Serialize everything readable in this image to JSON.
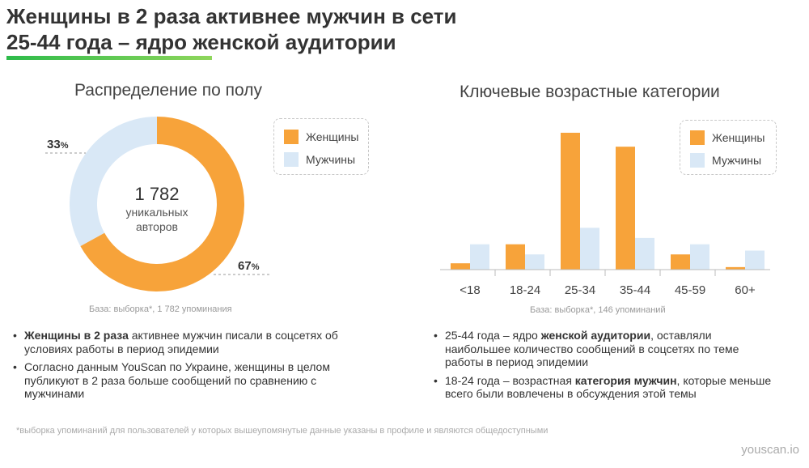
{
  "title": {
    "line1": "Женщины в 2 раза активнее мужчин в сети",
    "line2": "25-44 года – ядро женской аудитории"
  },
  "colors": {
    "women": "#f7a33a",
    "men": "#d9e8f6",
    "accent": "#2dbb4a"
  },
  "legend": {
    "women": "Женщины",
    "men": "Мужчины"
  },
  "donut": {
    "section_title": "Распределение по полу",
    "center_value": "1 782",
    "center_label_1": "уникальных",
    "center_label_2": "авторов",
    "men_label": "33",
    "women_label": "67",
    "pct_sign": "%",
    "base": "База: выборка*, 1 782 упоминания"
  },
  "bars": {
    "section_title": "Ключевые возрастные категории",
    "base": "База: выборка*, 146 упоминаний"
  },
  "chart_data": [
    {
      "type": "pie",
      "categories": [
        "Женщины",
        "Мужчины"
      ],
      "values": [
        67,
        33
      ],
      "unit": "%",
      "title": "Распределение по полу"
    },
    {
      "type": "bar",
      "title": "Ключевые возрастные категории",
      "categories": [
        "<18",
        "18-24",
        "25-34",
        "35-44",
        "45-59",
        "60+"
      ],
      "series": [
        {
          "name": "Женщины",
          "values": [
            5,
            20,
            108,
            97,
            12,
            2
          ]
        },
        {
          "name": "Мужчины",
          "values": [
            20,
            12,
            33,
            25,
            20,
            15
          ]
        }
      ],
      "ylim": [
        0,
        115
      ],
      "grid": false,
      "legend": "top-right"
    }
  ],
  "left_bullets": [
    {
      "bold": "Женщины в 2 раза",
      "rest": " активнее мужчин писали в соцсетях об условиях работы в период эпидемии"
    },
    {
      "text": "Согласно данным YouScan по Украине, женщины в целом публикуют в 2 раза больше сообщений по сравнению с мужчинами"
    }
  ],
  "right_bullets": [
    {
      "pre": "25-44 года – ядро ",
      "bold": "женской аудитории",
      "post": ", оставляли наибольшее количество сообщений в соцсетях по теме работы в период эпидемии"
    },
    {
      "pre": "18-24 года – возрастная ",
      "bold": "категория мужчин",
      "post": ", которые меньше всего были вовлечены в обсуждения этой темы"
    }
  ],
  "footnote": "*выборка упоминаний для пользователей у которых вышеупомянутые данные указаны в профиле и являются общедоступными",
  "brand": "youscan.io"
}
